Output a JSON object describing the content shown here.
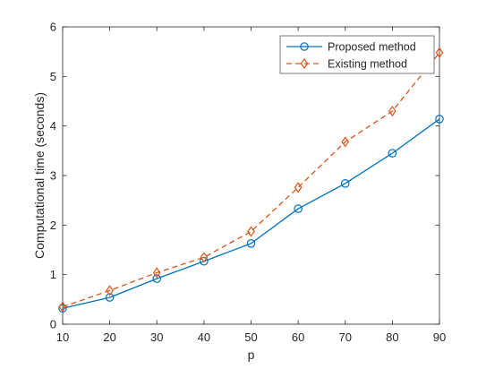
{
  "chart_data": {
    "type": "line",
    "title": "",
    "xlabel": "p",
    "ylabel": "Computational time (seconds)",
    "x": [
      10,
      20,
      30,
      40,
      50,
      60,
      70,
      80,
      90
    ],
    "xlim": [
      10,
      90
    ],
    "ylim": [
      0,
      6
    ],
    "xticks": [
      10,
      20,
      30,
      40,
      50,
      60,
      70,
      80,
      90
    ],
    "yticks": [
      0,
      1,
      2,
      3,
      4,
      5,
      6
    ],
    "grid": false,
    "legend_position": "top-right",
    "series": [
      {
        "name": "Proposed method",
        "values": [
          0.32,
          0.54,
          0.92,
          1.27,
          1.63,
          2.33,
          2.84,
          3.45,
          4.14
        ],
        "color": "#0072BD",
        "line_style": "solid",
        "marker": "circle"
      },
      {
        "name": "Existing method",
        "values": [
          0.35,
          0.68,
          1.04,
          1.35,
          1.87,
          2.76,
          3.68,
          4.3,
          5.48
        ],
        "color": "#D95319",
        "line_style": "dashed",
        "marker": "diamond"
      }
    ]
  }
}
